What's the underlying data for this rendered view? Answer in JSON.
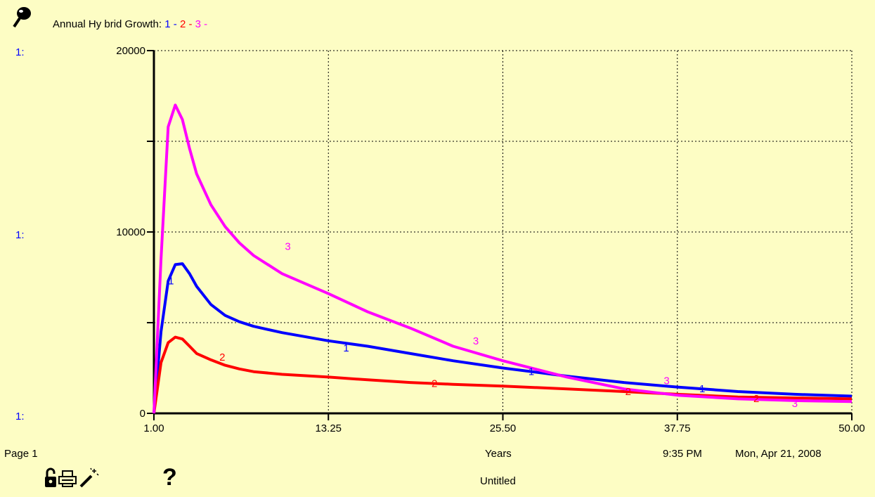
{
  "header": {
    "title": "Annual Hy brid Growth:",
    "legend": [
      {
        "label": "1",
        "color": "#0000ff"
      },
      {
        "label": "2",
        "color": "#ff0000"
      },
      {
        "label": "3",
        "color": "#ff00ff"
      }
    ],
    "legend_sep": "-"
  },
  "axis_prefix": "1:",
  "footer": {
    "page": "Page 1",
    "xlabel": "Years",
    "time": "9:35 PM",
    "date": "Mon, Apr 21, 2008",
    "doc_title": "Untitled"
  },
  "toolbar": {
    "icons": [
      "pin-icon",
      "lock-icon",
      "print-icon",
      "magic-wand-icon",
      "help-icon"
    ],
    "help_label": "?"
  },
  "chart_data": {
    "type": "line",
    "title": "Annual Hy brid Growth:",
    "xlabel": "Years",
    "xlim": [
      1.0,
      50.0
    ],
    "ylim": [
      0,
      20000
    ],
    "x_ticks": [
      "1.00",
      "13.25",
      "25.50",
      "37.75",
      "50.00"
    ],
    "y_ticks": [
      "0",
      "10000",
      "20000"
    ],
    "grid": true,
    "legend_position": "top-left",
    "x": [
      1.0,
      1.5,
      2.0,
      2.5,
      3.0,
      3.5,
      4.0,
      5.0,
      6.0,
      7.0,
      8.0,
      10.0,
      13.25,
      16.0,
      19.0,
      22.0,
      25.5,
      30.0,
      34.0,
      37.75,
      42.0,
      46.0,
      50.0
    ],
    "series": [
      {
        "name": "1",
        "color": "#0000ff",
        "values": [
          0,
          4500,
          7300,
          8200,
          8250,
          7700,
          7000,
          6000,
          5400,
          5050,
          4800,
          4450,
          4000,
          3700,
          3300,
          2900,
          2500,
          2050,
          1700,
          1450,
          1200,
          1050,
          950
        ]
      },
      {
        "name": "2",
        "color": "#ff0000",
        "values": [
          0,
          2800,
          3900,
          4200,
          4100,
          3700,
          3300,
          2950,
          2650,
          2450,
          2300,
          2150,
          2000,
          1850,
          1700,
          1600,
          1500,
          1350,
          1200,
          1050,
          900,
          850,
          800
        ]
      },
      {
        "name": "3",
        "color": "#ff00ff",
        "values": [
          0,
          8500,
          15800,
          17000,
          16200,
          14600,
          13200,
          11500,
          10300,
          9400,
          8700,
          7700,
          6600,
          5600,
          4700,
          3700,
          2900,
          2000,
          1350,
          1000,
          800,
          700,
          650
        ]
      }
    ],
    "curve_labels": [
      {
        "series": 0,
        "x": 2.2,
        "y": 7300
      },
      {
        "series": 0,
        "x": 14.5,
        "y": 3600
      },
      {
        "series": 0,
        "x": 27.5,
        "y": 2300
      },
      {
        "series": 0,
        "x": 39.5,
        "y": 1350
      },
      {
        "series": 1,
        "x": 5.8,
        "y": 3100
      },
      {
        "series": 1,
        "x": 20.7,
        "y": 1650
      },
      {
        "series": 1,
        "x": 34.3,
        "y": 1200
      },
      {
        "series": 1,
        "x": 43.3,
        "y": 820
      },
      {
        "series": 2,
        "x": 10.4,
        "y": 9200
      },
      {
        "series": 2,
        "x": 23.6,
        "y": 4000
      },
      {
        "series": 2,
        "x": 37.0,
        "y": 1800
      },
      {
        "series": 2,
        "x": 46.0,
        "y": 550
      }
    ]
  }
}
